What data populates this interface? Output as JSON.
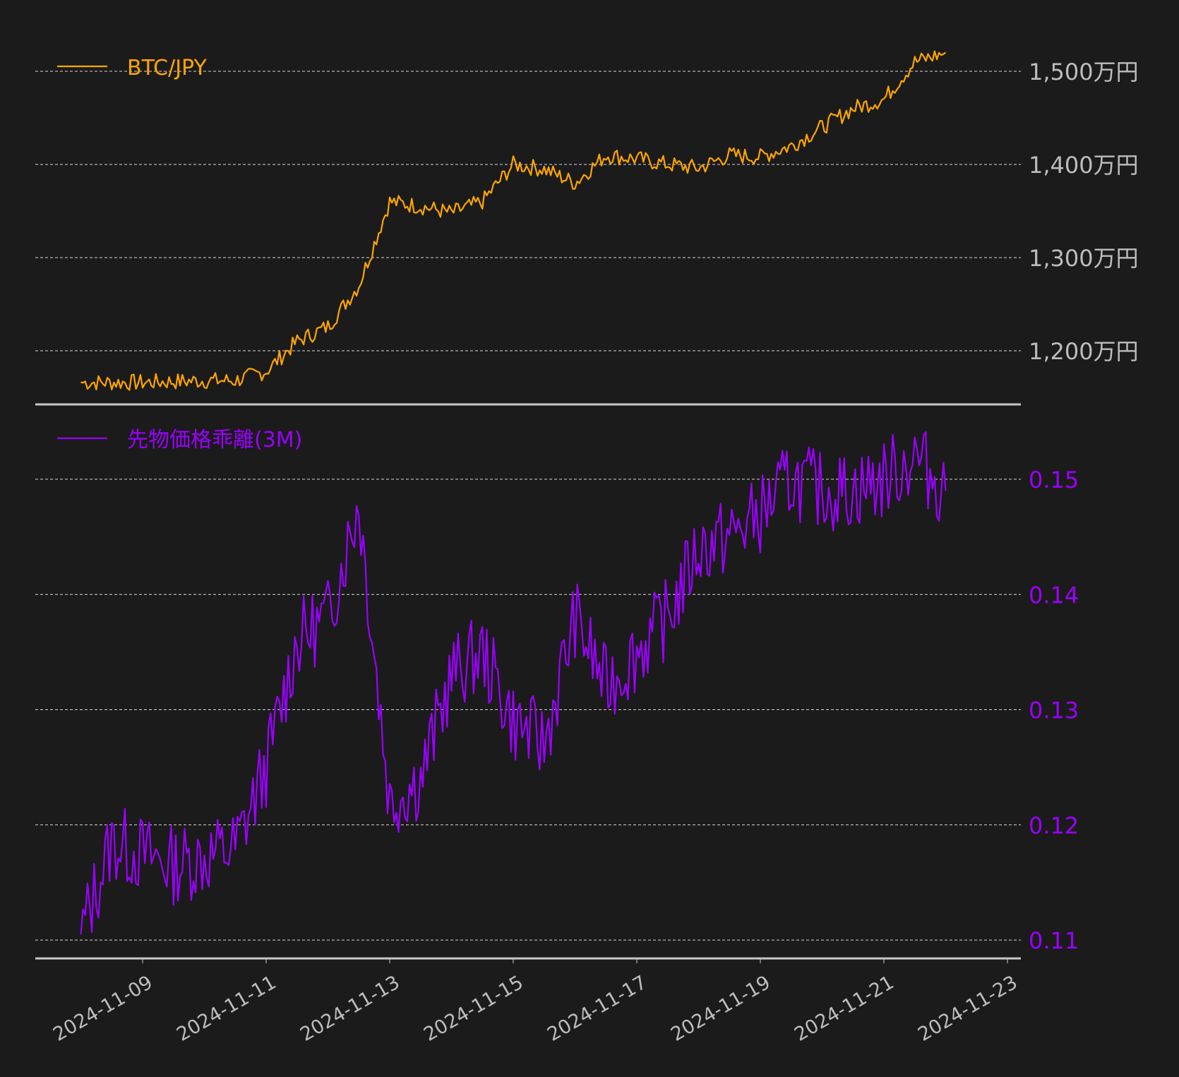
{
  "chart_data": [
    {
      "type": "line",
      "title": "",
      "legend": "BTC/JPY",
      "legend_position": "upper-left",
      "color": "#ffa500",
      "ylabel": "",
      "yticks": [
        "1,200万円",
        "1,300万円",
        "1,400万円",
        "1,500万円"
      ],
      "ytick_values": [
        12000000,
        13000000,
        14000000,
        15000000
      ],
      "ylim": [
        11600000,
        15600000
      ],
      "grid": true,
      "x": [
        "2024-11-08 00:00",
        "2024-11-08 12:00",
        "2024-11-09 00:00",
        "2024-11-09 12:00",
        "2024-11-10 00:00",
        "2024-11-10 12:00",
        "2024-11-11 00:00",
        "2024-11-11 12:00",
        "2024-11-12 00:00",
        "2024-11-12 12:00",
        "2024-11-13 00:00",
        "2024-11-13 12:00",
        "2024-11-14 00:00",
        "2024-11-14 12:00",
        "2024-11-15 00:00",
        "2024-11-15 12:00",
        "2024-11-16 00:00",
        "2024-11-16 12:00",
        "2024-11-17 00:00",
        "2024-11-17 12:00",
        "2024-11-18 00:00",
        "2024-11-18 12:00",
        "2024-11-19 00:00",
        "2024-11-19 12:00",
        "2024-11-20 00:00",
        "2024-11-20 12:00",
        "2024-11-21 00:00",
        "2024-11-21 12:00",
        "2024-11-22 00:00"
      ],
      "values": [
        11660000,
        11660000,
        11660000,
        11670000,
        11680000,
        11680000,
        11780000,
        12100000,
        12260000,
        12700000,
        13600000,
        13550000,
        13480000,
        13600000,
        14000000,
        13950000,
        13800000,
        14100000,
        14060000,
        14000000,
        13960000,
        14100000,
        14080000,
        14200000,
        14400000,
        14600000,
        14700000,
        15100000,
        15200000
      ]
    },
    {
      "type": "line",
      "title": "",
      "legend": "先物価格乖離(3M)",
      "legend_position": "upper-left",
      "color": "#9b00ff",
      "ylabel": "",
      "yticks": [
        "0.11",
        "0.12",
        "0.13",
        "0.14",
        "0.15"
      ],
      "ytick_values": [
        0.11,
        0.12,
        0.13,
        0.14,
        0.15
      ],
      "ylim": [
        0.1083,
        0.1558
      ],
      "grid": true,
      "x": [
        "2024-11-08 00:00",
        "2024-11-08 12:00",
        "2024-11-09 00:00",
        "2024-11-09 12:00",
        "2024-11-10 00:00",
        "2024-11-10 12:00",
        "2024-11-11 00:00",
        "2024-11-11 12:00",
        "2024-11-12 00:00",
        "2024-11-12 12:00",
        "2024-11-13 00:00",
        "2024-11-13 12:00",
        "2024-11-14 00:00",
        "2024-11-14 12:00",
        "2024-11-15 00:00",
        "2024-11-15 12:00",
        "2024-11-16 00:00",
        "2024-11-16 12:00",
        "2024-11-17 00:00",
        "2024-11-17 12:00",
        "2024-11-18 00:00",
        "2024-11-18 12:00",
        "2024-11-19 00:00",
        "2024-11-19 12:00",
        "2024-11-20 00:00",
        "2024-11-20 12:00",
        "2024-11-21 00:00",
        "2024-11-21 12:00",
        "2024-11-22 00:00"
      ],
      "values": [
        0.1105,
        0.1185,
        0.1175,
        0.1165,
        0.1172,
        0.118,
        0.125,
        0.136,
        0.138,
        0.148,
        0.122,
        0.124,
        0.133,
        0.135,
        0.129,
        0.127,
        0.138,
        0.132,
        0.135,
        0.138,
        0.144,
        0.145,
        0.147,
        0.15,
        0.149,
        0.149,
        0.15,
        0.152,
        0.149
      ]
    }
  ],
  "xaxis": {
    "ticks": [
      "2024-11-09",
      "2024-11-11",
      "2024-11-13",
      "2024-11-15",
      "2024-11-17",
      "2024-11-19",
      "2024-11-21",
      "2024-11-23"
    ],
    "label_rotation": -30
  },
  "colors": {
    "background": "#1b1b1b",
    "btc": "#ffa500",
    "spread": "#9b00ff",
    "tick_label": "#bdbdbd",
    "grid": "#d9d9d9",
    "axis_line": "#c8c8c8"
  }
}
